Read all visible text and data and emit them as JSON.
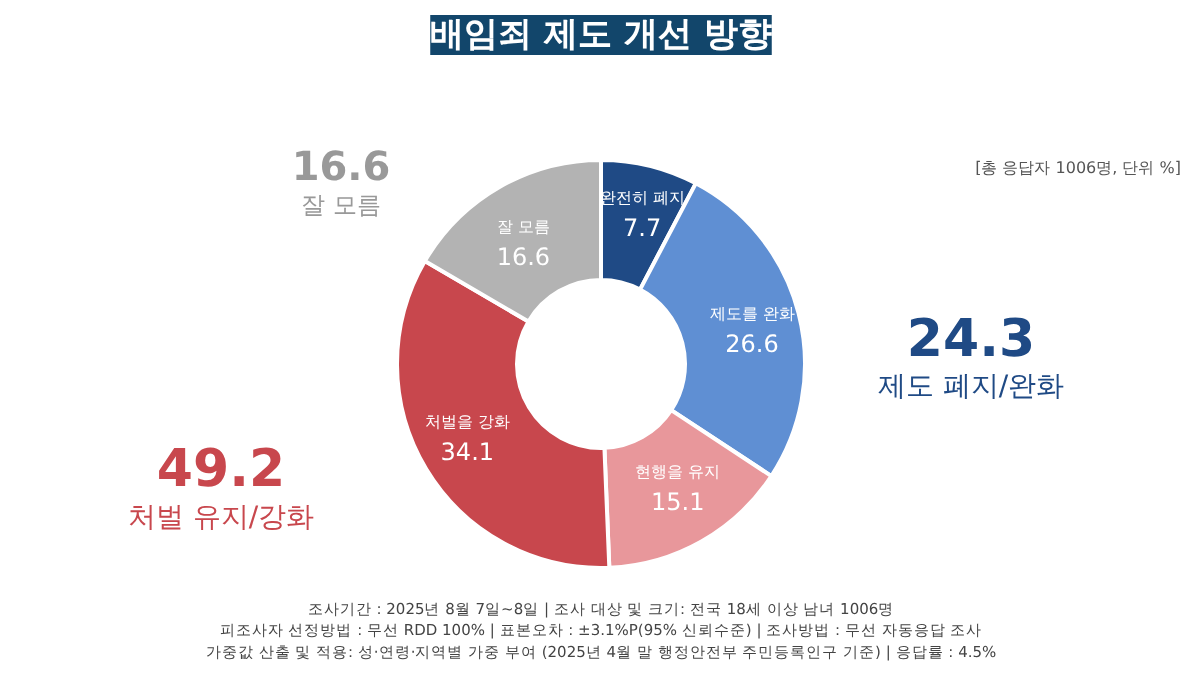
{
  "chart_data": {
    "type": "donut",
    "title": "배임죄 제도 개선 방향",
    "categories": [
      "완전히 폐지",
      "제도를 완화",
      "현행을 유지",
      "처벌을 강화",
      "잘 모름"
    ],
    "values": [
      7.7,
      26.6,
      15.1,
      34.1,
      16.6
    ],
    "colors": [
      "#1f4a85",
      "#5f8fd3",
      "#e8979b",
      "#c8474d",
      "#b3b3b3"
    ],
    "data_labels": true,
    "annotations": [
      "24.3",
      "제도 폐지/완화",
      "49.2",
      "처벌 유지/강화",
      "16.6",
      "잘 모름",
      "[총 응답자 1006명, 단위 %]",
      "조사기간 : 2025년 8월 7일~8일 | 조사 대상 및 크기: 전국 18세 이상 남녀 1006명",
      "피조사자 선정방법 : 무선 RDD 100% | 표본오차 : ±3.1%P(95% 신뢰수준) | 조사방법 : 무선 자동응답 조사",
      "가중값 산출 및 적용: 성·연령·지역별 가중 부여 (2025년 4월 말 행정안전부 주민등록인구 기준) | 응답률 : 4.5%"
    ]
  }
}
